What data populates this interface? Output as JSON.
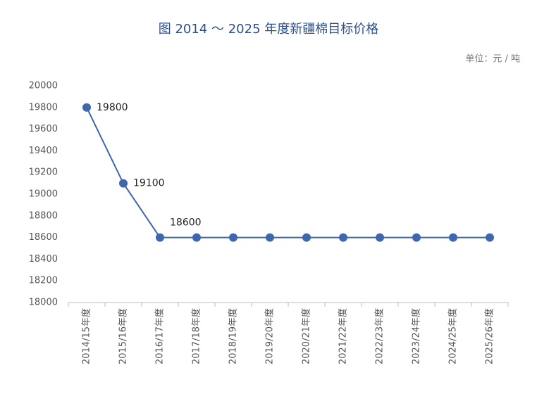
{
  "chart_data": {
    "type": "line",
    "title": "图 2014 ～ 2025 年度新疆棉目标价格",
    "unit_label": "单位：元 / 吨",
    "categories": [
      "2014/15年度",
      "2015/16年度",
      "2016/17年度",
      "2017/18年度",
      "2018/19年度",
      "2019/20年度",
      "2020/21年度",
      "2021/22年度",
      "2022/23年度",
      "2023/24年度",
      "2024/25年度",
      "2025/26年度"
    ],
    "values": [
      19800,
      19100,
      18600,
      18600,
      18600,
      18600,
      18600,
      18600,
      18600,
      18600,
      18600,
      18600
    ],
    "color": "#3f67ab",
    "ylim": [
      18000,
      20000
    ],
    "yticks": [
      18000,
      18200,
      18400,
      18600,
      18800,
      19000,
      19200,
      19400,
      19600,
      19800,
      20000
    ],
    "grid": false
  }
}
